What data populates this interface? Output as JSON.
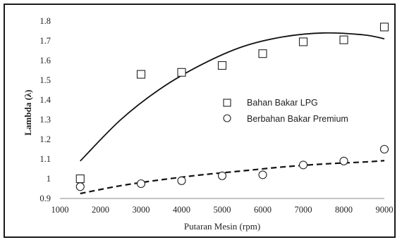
{
  "chart_data": {
    "type": "scatter",
    "title": "",
    "xlabel": "Putaran Mesin (rpm)",
    "ylabel": "Lambda (λ)",
    "xlim": [
      1000,
      9000
    ],
    "ylim": [
      0.9,
      1.8
    ],
    "x_ticks": [
      "1000",
      "2000",
      "3000",
      "4000",
      "5000",
      "6000",
      "7000",
      "8000",
      "9000"
    ],
    "y_ticks": [
      "0.9",
      "1",
      "1.1",
      "1.2",
      "1.3",
      "1.4",
      "1.5",
      "1.6",
      "1.7",
      "1.8"
    ],
    "grid": false,
    "legend_position": "center-right",
    "series": [
      {
        "name": "Bahan Bakar LPG",
        "marker": "square",
        "trendline": "solid polynomial",
        "x": [
          1500,
          3000,
          4000,
          5000,
          6000,
          7000,
          8000,
          9000
        ],
        "y": [
          1.0,
          1.53,
          1.54,
          1.575,
          1.635,
          1.695,
          1.705,
          1.77
        ],
        "trend_x": [
          1500,
          2500,
          3500,
          4500,
          5500,
          6500,
          7500,
          8500,
          9000
        ],
        "trend_y": [
          1.09,
          1.3,
          1.46,
          1.58,
          1.67,
          1.72,
          1.74,
          1.73,
          1.71
        ]
      },
      {
        "name": "Berbahan Bakar Premium",
        "marker": "circle",
        "trendline": "dashed",
        "x": [
          1500,
          3000,
          4000,
          5000,
          6000,
          7000,
          8000,
          9000
        ],
        "y": [
          0.96,
          0.975,
          0.99,
          1.015,
          1.02,
          1.07,
          1.09,
          1.15
        ],
        "trend_x": [
          1500,
          2500,
          3500,
          4500,
          5500,
          6500,
          7500,
          8500,
          9000
        ],
        "trend_y": [
          0.925,
          0.965,
          0.995,
          1.02,
          1.04,
          1.06,
          1.075,
          1.085,
          1.092
        ]
      }
    ]
  }
}
